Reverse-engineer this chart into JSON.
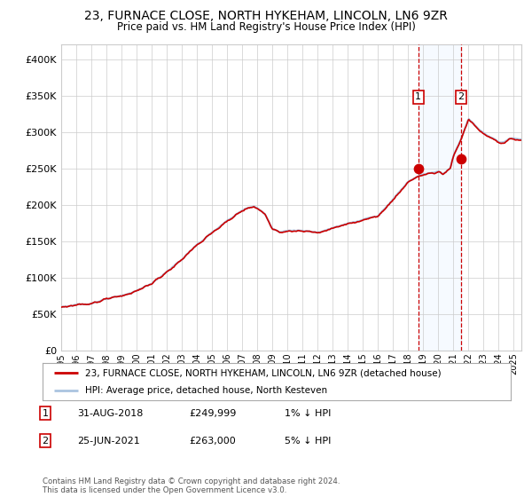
{
  "title": "23, FURNACE CLOSE, NORTH HYKEHAM, LINCOLN, LN6 9ZR",
  "subtitle": "Price paid vs. HM Land Registry's House Price Index (HPI)",
  "legend_line1": "23, FURNACE CLOSE, NORTH HYKEHAM, LINCOLN, LN6 9ZR (detached house)",
  "legend_line2": "HPI: Average price, detached house, North Kesteven",
  "annotation1_date": "31-AUG-2018",
  "annotation1_price": "£249,999",
  "annotation1_hpi": "1% ↓ HPI",
  "annotation2_date": "25-JUN-2021",
  "annotation2_price": "£263,000",
  "annotation2_hpi": "5% ↓ HPI",
  "sale1_year": 2018.667,
  "sale1_value": 249999,
  "sale2_year": 2021.479,
  "sale2_value": 263000,
  "ylabel_ticks": [
    0,
    50000,
    100000,
    150000,
    200000,
    250000,
    300000,
    350000,
    400000
  ],
  "ylabel_labels": [
    "£0",
    "£50K",
    "£100K",
    "£150K",
    "£200K",
    "£250K",
    "£300K",
    "£350K",
    "£400K"
  ],
  "copyright": "Contains HM Land Registry data © Crown copyright and database right 2024.\nThis data is licensed under the Open Government Licence v3.0.",
  "hpi_line_color": "#aac4e0",
  "price_line_color": "#cc0000",
  "dot_color": "#cc0000",
  "bg_color": "#ffffff",
  "grid_color": "#cccccc",
  "shade_color": "#ddeeff",
  "vline_color": "#cc0000",
  "xstart": 1995,
  "xend": 2025.5,
  "ymin": 0,
  "ymax": 420000
}
